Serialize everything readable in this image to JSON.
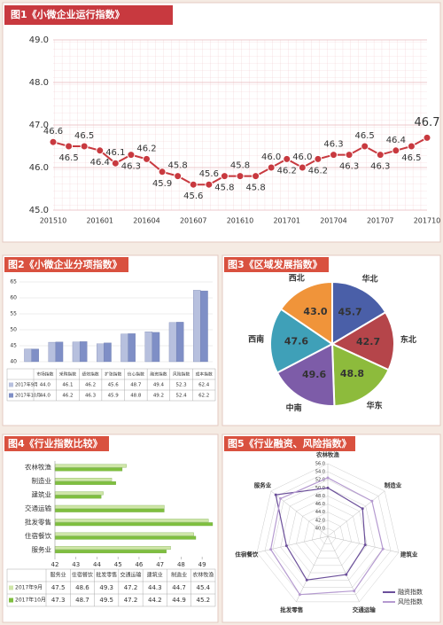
{
  "chart_data": [
    {
      "type": "line",
      "title": "图1《小微企业运行指数》",
      "color": "#c8393f",
      "categories": [
        "201510",
        null,
        null,
        "201601",
        null,
        null,
        "201604",
        null,
        null,
        "201607",
        null,
        null,
        "201610",
        null,
        null,
        "201701",
        null,
        null,
        "201704",
        null,
        null,
        "201707",
        null,
        null,
        "201710"
      ],
      "values": [
        46.6,
        46.5,
        46.5,
        46.4,
        46.1,
        46.3,
        46.2,
        45.9,
        45.8,
        45.6,
        45.6,
        45.8,
        45.8,
        45.8,
        46.0,
        46.2,
        46.0,
        46.2,
        46.3,
        46.3,
        46.5,
        46.3,
        46.4,
        46.5,
        46.7
      ],
      "value_labels": [
        "46.6",
        "46.5",
        "46.5",
        "46.4",
        "46.1",
        "46.3",
        "46.2",
        "45.9",
        "45.8",
        "45.6",
        "45.6",
        "45.8",
        "45.8",
        "45.8",
        "46.0",
        "46.2",
        "46.0",
        "46.2",
        "46.3",
        "46.3",
        "46.5",
        "46.3",
        "46.4",
        "46.5",
        "46.7"
      ],
      "ylim": [
        45,
        49
      ],
      "yticks": [
        {
          "value": 45,
          "label": "45.0"
        },
        {
          "value": 46,
          "label": "46.0"
        },
        {
          "value": 47,
          "label": "47.0"
        },
        {
          "value": 48,
          "label": "48.0"
        },
        {
          "value": 49,
          "label": "49.0"
        }
      ],
      "grid": true
    },
    {
      "type": "bar",
      "title": "图2《小微企业分项指数》",
      "categories": [
        "市场指数",
        "采购指数",
        "绩效指数",
        "扩张指数",
        "信心指数",
        "融资指数",
        "风险指数",
        "成本指数"
      ],
      "series": [
        {
          "name": "2017年9月",
          "color": "#b7c0de",
          "values": [
            44.0,
            46.1,
            46.2,
            45.6,
            48.7,
            49.4,
            52.3,
            62.4
          ],
          "value_labels": [
            "44.0",
            "46.1",
            "46.2",
            "45.6",
            "48.7",
            "49.4",
            "52.3",
            "62.4"
          ]
        },
        {
          "name": "2017年10月",
          "color": "#7f8fc6",
          "values": [
            44.0,
            46.2,
            46.3,
            45.9,
            48.8,
            49.2,
            52.4,
            62.2
          ],
          "value_labels": [
            "44.0",
            "46.2",
            "46.3",
            "45.9",
            "48.8",
            "49.2",
            "52.4",
            "62.2"
          ]
        }
      ],
      "ylim": [
        40,
        65
      ],
      "yticks": [
        40,
        45,
        50,
        55,
        60,
        65
      ],
      "grid": true
    },
    {
      "type": "pie",
      "title": "图3《区域发展指数》",
      "categories": [
        "华北",
        "东北",
        "华东",
        "中南",
        "西南",
        "西北"
      ],
      "values": [
        45.7,
        42.7,
        48.8,
        49.6,
        47.6,
        43.0
      ],
      "value_labels": [
        "45.7",
        "42.7",
        "48.8",
        "49.6",
        "47.6",
        "43.0"
      ],
      "colors": [
        "#4a5fa8",
        "#b5454a",
        "#8dbb3c",
        "#7d5ca8",
        "#3fa0b8",
        "#f0943a"
      ]
    },
    {
      "type": "bar",
      "orientation": "horizontal",
      "title": "图4《行业指数比较》",
      "categories": [
        "服务业",
        "住宿餐饮",
        "批发零售",
        "交通运输",
        "建筑业",
        "制造业",
        "农林牧渔"
      ],
      "series": [
        {
          "name": "2017年9月",
          "color": "#cfe6a8",
          "values": [
            47.5,
            48.6,
            49.3,
            47.2,
            44.3,
            44.7,
            45.4
          ]
        },
        {
          "name": "2017年10月",
          "color": "#7fbf3f",
          "values": [
            47.3,
            48.7,
            49.5,
            47.2,
            44.2,
            44.9,
            45.2
          ]
        }
      ],
      "xlim": [
        42,
        49.5
      ],
      "xticks": [
        42,
        43,
        44,
        45,
        46,
        47,
        48,
        49
      ]
    },
    {
      "type": "radar",
      "title": "图5《行业融资、风险指数》",
      "categories": [
        "农林牧渔",
        "制造业",
        "建筑业",
        "交通运输",
        "批发零售",
        "住宿餐饮",
        "服务业"
      ],
      "series": [
        {
          "name": "融资指数",
          "color": "#6b4f9a",
          "values": [
            50.0,
            49.0,
            47.5,
            48.5,
            50.0,
            48.5,
            54.5
          ]
        },
        {
          "name": "风险指数",
          "color": "#b59ad0",
          "values": [
            52.5,
            52.0,
            52.0,
            53.0,
            54.0,
            52.5,
            53.0
          ]
        }
      ],
      "rlim": [
        38,
        56
      ],
      "rticks": [
        {
          "value": 40,
          "label": "40.0"
        },
        {
          "value": 42,
          "label": "42.0"
        },
        {
          "value": 44,
          "label": "44.0"
        },
        {
          "value": 46,
          "label": "46.0"
        },
        {
          "value": 48,
          "label": "48.0"
        },
        {
          "value": 50,
          "label": "50.0"
        },
        {
          "value": 52,
          "label": "52.0"
        },
        {
          "value": 54,
          "label": "54.0"
        },
        {
          "value": 56,
          "label": "56.0"
        }
      ]
    }
  ]
}
